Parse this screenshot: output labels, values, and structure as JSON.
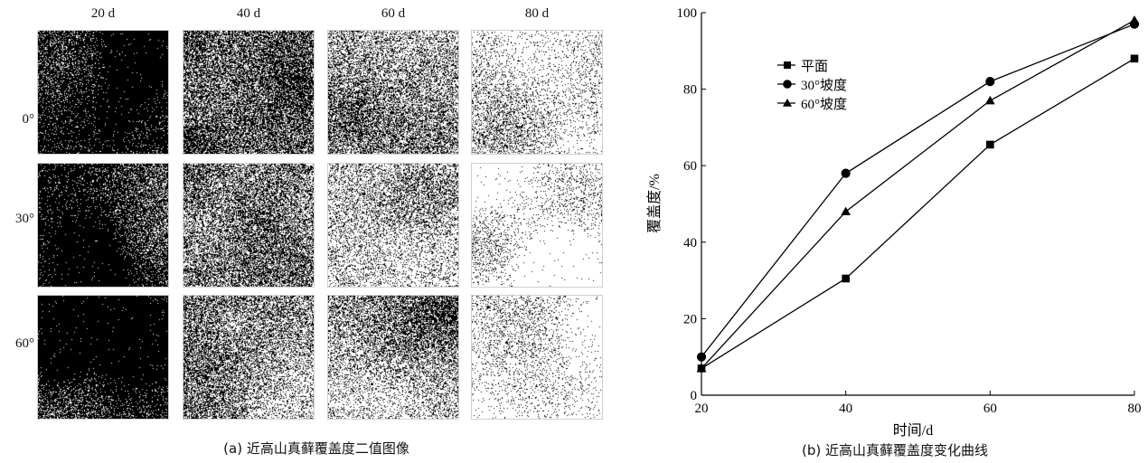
{
  "panel_a": {
    "column_labels": [
      "20 d",
      "40 d",
      "60 d",
      "80 d"
    ],
    "row_labels": [
      "0°",
      "30°",
      "60°"
    ],
    "tile_coverage": [
      [
        0.1,
        0.4,
        0.66,
        0.88
      ],
      [
        0.08,
        0.45,
        0.78,
        0.97
      ],
      [
        0.12,
        0.48,
        0.72,
        0.98
      ]
    ],
    "caption": "(a) 近高山真藓覆盖度二值图像"
  },
  "panel_b": {
    "caption": "(b) 近高山真藓覆盖度变化曲线"
  },
  "chart_data": {
    "type": "line",
    "x": [
      20,
      40,
      60,
      80
    ],
    "series": [
      {
        "name": "平面",
        "marker": "square",
        "values": [
          7,
          30.5,
          65.5,
          88
        ]
      },
      {
        "name": "30°坡度",
        "marker": "circle",
        "values": [
          10,
          58,
          82,
          97
        ]
      },
      {
        "name": "60°坡度",
        "marker": "triangle",
        "values": [
          7,
          48,
          77,
          98
        ]
      }
    ],
    "xlabel": "时间/d",
    "ylabel": "覆盖度/%",
    "xlim": [
      20,
      80
    ],
    "ylim": [
      0,
      100
    ],
    "xticks": [
      "20",
      "40",
      "60",
      "80"
    ],
    "yticks": [
      "0",
      "20",
      "40",
      "60",
      "80",
      "100"
    ],
    "legend_position": "top-left",
    "grid": false
  }
}
